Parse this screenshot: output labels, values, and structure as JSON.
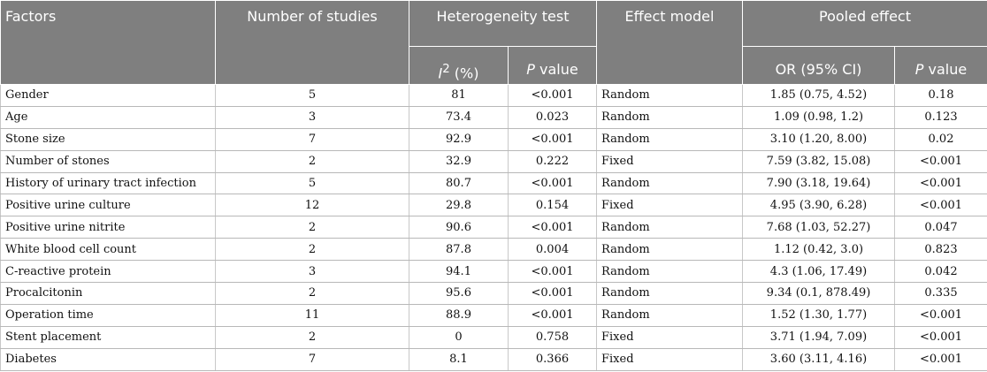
{
  "header": {
    "factors": "Factors",
    "num_studies": "Number of studies",
    "heterogeneity": "Heterogeneity test",
    "i2_base": "I",
    "i2_sup": "2",
    "i2_unit": " (%)",
    "p_italic": "P",
    "p_value_rest": " value",
    "effect_model": "Effect model",
    "pooled_effect": "Pooled effect",
    "or_ci": "OR (95% CI)"
  },
  "rows": [
    {
      "factor": "Gender",
      "n": "5",
      "i2": "81",
      "p": "<0.001",
      "model": "Random",
      "or": "1.85 (0.75, 4.52)",
      "pp": "0.18"
    },
    {
      "factor": "Age",
      "n": "3",
      "i2": "73.4",
      "p": "0.023",
      "model": "Random",
      "or": "1.09 (0.98, 1.2)",
      "pp": "0.123"
    },
    {
      "factor": "Stone size",
      "n": "7",
      "i2": "92.9",
      "p": "<0.001",
      "model": "Random",
      "or": "3.10 (1.20, 8.00)",
      "pp": "0.02"
    },
    {
      "factor": "Number of stones",
      "n": "2",
      "i2": "32.9",
      "p": "0.222",
      "model": "Fixed",
      "or": "7.59 (3.82, 15.08)",
      "pp": "<0.001"
    },
    {
      "factor": "History of urinary tract infection",
      "n": "5",
      "i2": "80.7",
      "p": "<0.001",
      "model": "Random",
      "or": "7.90 (3.18, 19.64)",
      "pp": "<0.001"
    },
    {
      "factor": "Positive urine culture",
      "n": "12",
      "i2": "29.8",
      "p": "0.154",
      "model": "Fixed",
      "or": "4.95 (3.90, 6.28)",
      "pp": "<0.001"
    },
    {
      "factor": "Positive urine nitrite",
      "n": "2",
      "i2": "90.6",
      "p": "<0.001",
      "model": "Random",
      "or": "7.68 (1.03, 52.27)",
      "pp": "0.047"
    },
    {
      "factor": "White blood cell count",
      "n": "2",
      "i2": "87.8",
      "p": "0.004",
      "model": "Random",
      "or": "1.12 (0.42, 3.0)",
      "pp": "0.823"
    },
    {
      "factor": "C-reactive protein",
      "n": "3",
      "i2": "94.1",
      "p": "<0.001",
      "model": "Random",
      "or": "4.3 (1.06, 17.49)",
      "pp": "0.042"
    },
    {
      "factor": "Procalcitonin",
      "n": "2",
      "i2": "95.6",
      "p": "<0.001",
      "model": "Random",
      "or": "9.34 (0.1, 878.49)",
      "pp": "0.335"
    },
    {
      "factor": "Operation time",
      "n": "11",
      "i2": "88.9",
      "p": "<0.001",
      "model": "Random",
      "or": "1.52 (1.30, 1.77)",
      "pp": "<0.001"
    },
    {
      "factor": "Stent placement",
      "n": "2",
      "i2": "0",
      "p": "0.758",
      "model": "Fixed",
      "or": "3.71 (1.94, 7.09)",
      "pp": "<0.001"
    },
    {
      "factor": "Diabetes",
      "n": "7",
      "i2": "8.1",
      "p": "0.366",
      "model": "Fixed",
      "or": "3.60 (3.11, 4.16)",
      "pp": "<0.001"
    }
  ]
}
